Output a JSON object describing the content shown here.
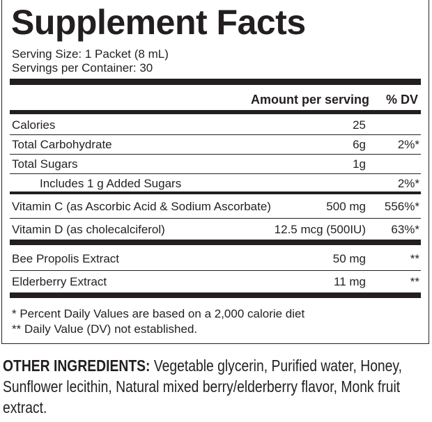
{
  "title": "Supplement Facts",
  "serving": [
    "Serving Size: 1 Packet (8 mL)",
    "Servings per Container: 30"
  ],
  "header": {
    "amount": "Amount per serving",
    "dv": "% DV"
  },
  "rows": [
    {
      "name": "Calories",
      "amount": "25"
    },
    {
      "name": "Total Carbohydrate",
      "amount": "6g",
      "dv": "2%*"
    },
    {
      "name": "Total Sugars",
      "amount": "1g"
    },
    {
      "name": "Includes 1 g Added Sugars",
      "dv": "2%*"
    },
    {
      "name": "Vitamin C (as Ascorbic Acid & Sodium Ascorbate)",
      "amount": "500 mg",
      "dv": "556%*"
    },
    {
      "name": "Vitamin D (as cholecalciferol)",
      "amount": "12.5 mcg (500IU)",
      "dv": "63%*"
    },
    {
      "name": "Bee Propolis Extract",
      "amount": "50 mg",
      "dv": "**"
    },
    {
      "name": "Elderberry Extract",
      "amount": "11 mg",
      "dv": "**"
    }
  ],
  "footnotes": [
    "* Percent Daily Values are based on a 2,000 calorie diet",
    "** Daily Value (DV) not established."
  ],
  "other_ingredients": {
    "label": "OTHER INGREDIENTS:",
    "text": "Vegetable glycerin, Purified water, Honey, Sunflower lecithin, Natural mixed berry/elderberry flavor, Monk fruit extract."
  }
}
